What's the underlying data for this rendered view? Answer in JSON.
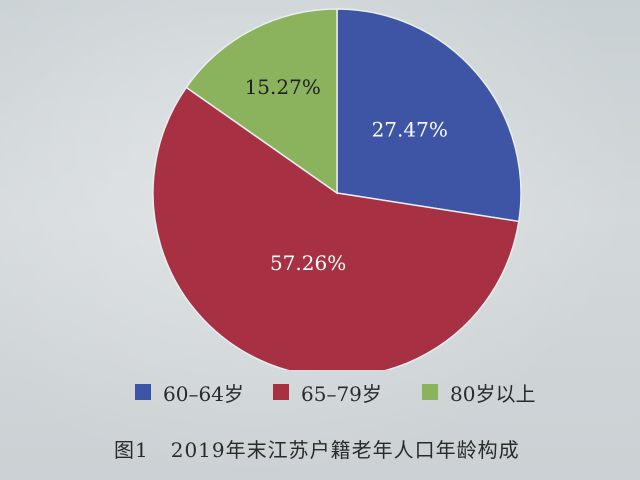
{
  "chart_data": {
    "type": "pie",
    "categories": [
      "60–64岁",
      "65–79岁",
      "80岁以上"
    ],
    "values": [
      27.47,
      57.26,
      15.27
    ],
    "value_labels": [
      "27.47%",
      "57.26%",
      "15.27%"
    ],
    "colors": [
      "#3e55a6",
      "#a83043",
      "#8bb25c"
    ],
    "label_colors": [
      "#ffffff",
      "#ffffff",
      "#1f1f1f"
    ],
    "start_angle_deg": 0,
    "direction": "clockwise",
    "legend_position": "bottom"
  },
  "caption": {
    "figure_number": "图1",
    "text": "2019年末江苏户籍老年人口年龄构成"
  }
}
